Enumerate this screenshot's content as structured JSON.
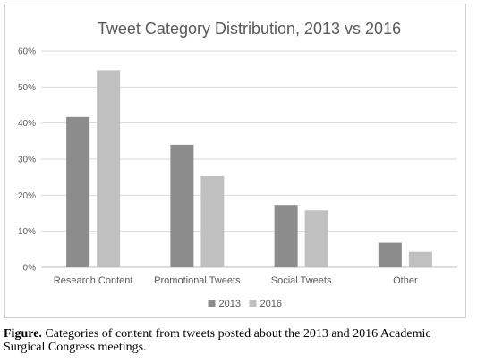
{
  "chart_data": {
    "type": "bar",
    "title": "Tweet Category Distribution, 2013 vs 2016",
    "categories": [
      "Research Content",
      "Promotional Tweets",
      "Social Tweets",
      "Other"
    ],
    "series": [
      {
        "name": "2013",
        "values": [
          41.7,
          34.0,
          17.3,
          6.8
        ],
        "color": "#8c8c8c"
      },
      {
        "name": "2016",
        "values": [
          54.7,
          25.3,
          15.8,
          4.3
        ],
        "color": "#c0c0c0"
      }
    ],
    "ylim": [
      0,
      60
    ],
    "y_ticks": [
      "0%",
      "10%",
      "20%",
      "30%",
      "40%",
      "50%",
      "60%"
    ],
    "grid": true,
    "legend_position": "bottom"
  },
  "caption": {
    "label": "Figure.",
    "text": " Categories of content from tweets posted about the 2013 and 2016 Academic Surgical Congress meetings."
  }
}
